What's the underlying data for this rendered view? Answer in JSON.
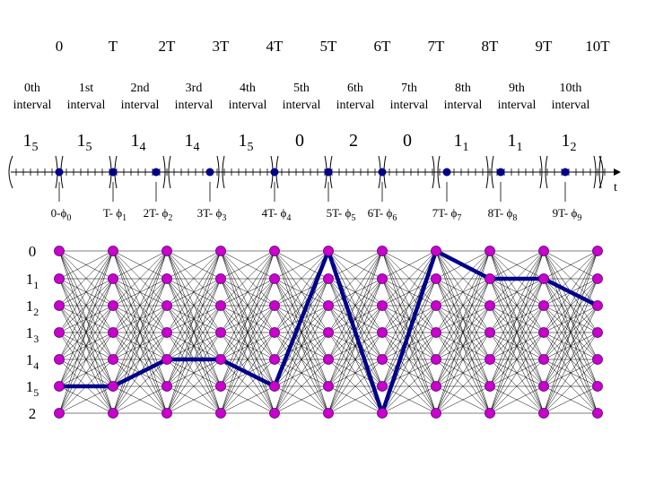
{
  "time_labels": [
    "0",
    "T",
    "2T",
    "3T",
    "4T",
    "5T",
    "6T",
    "7T",
    "8T",
    "9T",
    "10T"
  ],
  "interval_ordinals": [
    "0th",
    "1st",
    "2nd",
    "3rd",
    "4th",
    "5th",
    "6th",
    "7th",
    "8th",
    "9th",
    "10th"
  ],
  "interval_word": "interval",
  "symbols": [
    {
      "base": "1",
      "sub": "5"
    },
    {
      "base": "1",
      "sub": "5"
    },
    {
      "base": "1",
      "sub": "4"
    },
    {
      "base": "1",
      "sub": "4"
    },
    {
      "base": "1",
      "sub": "5"
    },
    {
      "base": "0",
      "sub": ""
    },
    {
      "base": "2",
      "sub": ""
    },
    {
      "base": "0",
      "sub": ""
    },
    {
      "base": "1",
      "sub": "1"
    },
    {
      "base": "1",
      "sub": "1"
    },
    {
      "base": "1",
      "sub": "2"
    }
  ],
  "axis_label": "t",
  "sample_labels": [
    {
      "prefix": "0-",
      "sub": "0"
    },
    {
      "prefix": "T- ",
      "sub": "1"
    },
    {
      "prefix": "2T- ",
      "sub": "2"
    },
    {
      "prefix": "3T- ",
      "sub": "3"
    },
    {
      "prefix": "4T- ",
      "sub": "4"
    },
    {
      "prefix": "5T- ",
      "sub": "5"
    },
    {
      "prefix": "6T- ",
      "sub": "6"
    },
    {
      "prefix": "7T- ",
      "sub": "7"
    },
    {
      "prefix": "8T- ",
      "sub": "8"
    },
    {
      "prefix": "9T- ",
      "sub": "9"
    }
  ],
  "phi_symbol": "ϕ",
  "state_labels": [
    {
      "base": "0",
      "sub": ""
    },
    {
      "base": "1",
      "sub": "1"
    },
    {
      "base": "1",
      "sub": "2"
    },
    {
      "base": "1",
      "sub": "3"
    },
    {
      "base": "1",
      "sub": "4"
    },
    {
      "base": "1",
      "sub": "5"
    },
    {
      "base": "2",
      "sub": ""
    }
  ],
  "trellis": {
    "columns": 11,
    "states": 7,
    "path_state_indices": [
      5,
      5,
      4,
      4,
      5,
      0,
      6,
      0,
      1,
      1,
      2
    ]
  },
  "colors": {
    "node": "#cc00cc",
    "node_stroke": "#55007a",
    "path": "#00008b",
    "sample": "#00008b",
    "edge": "#000000"
  }
}
